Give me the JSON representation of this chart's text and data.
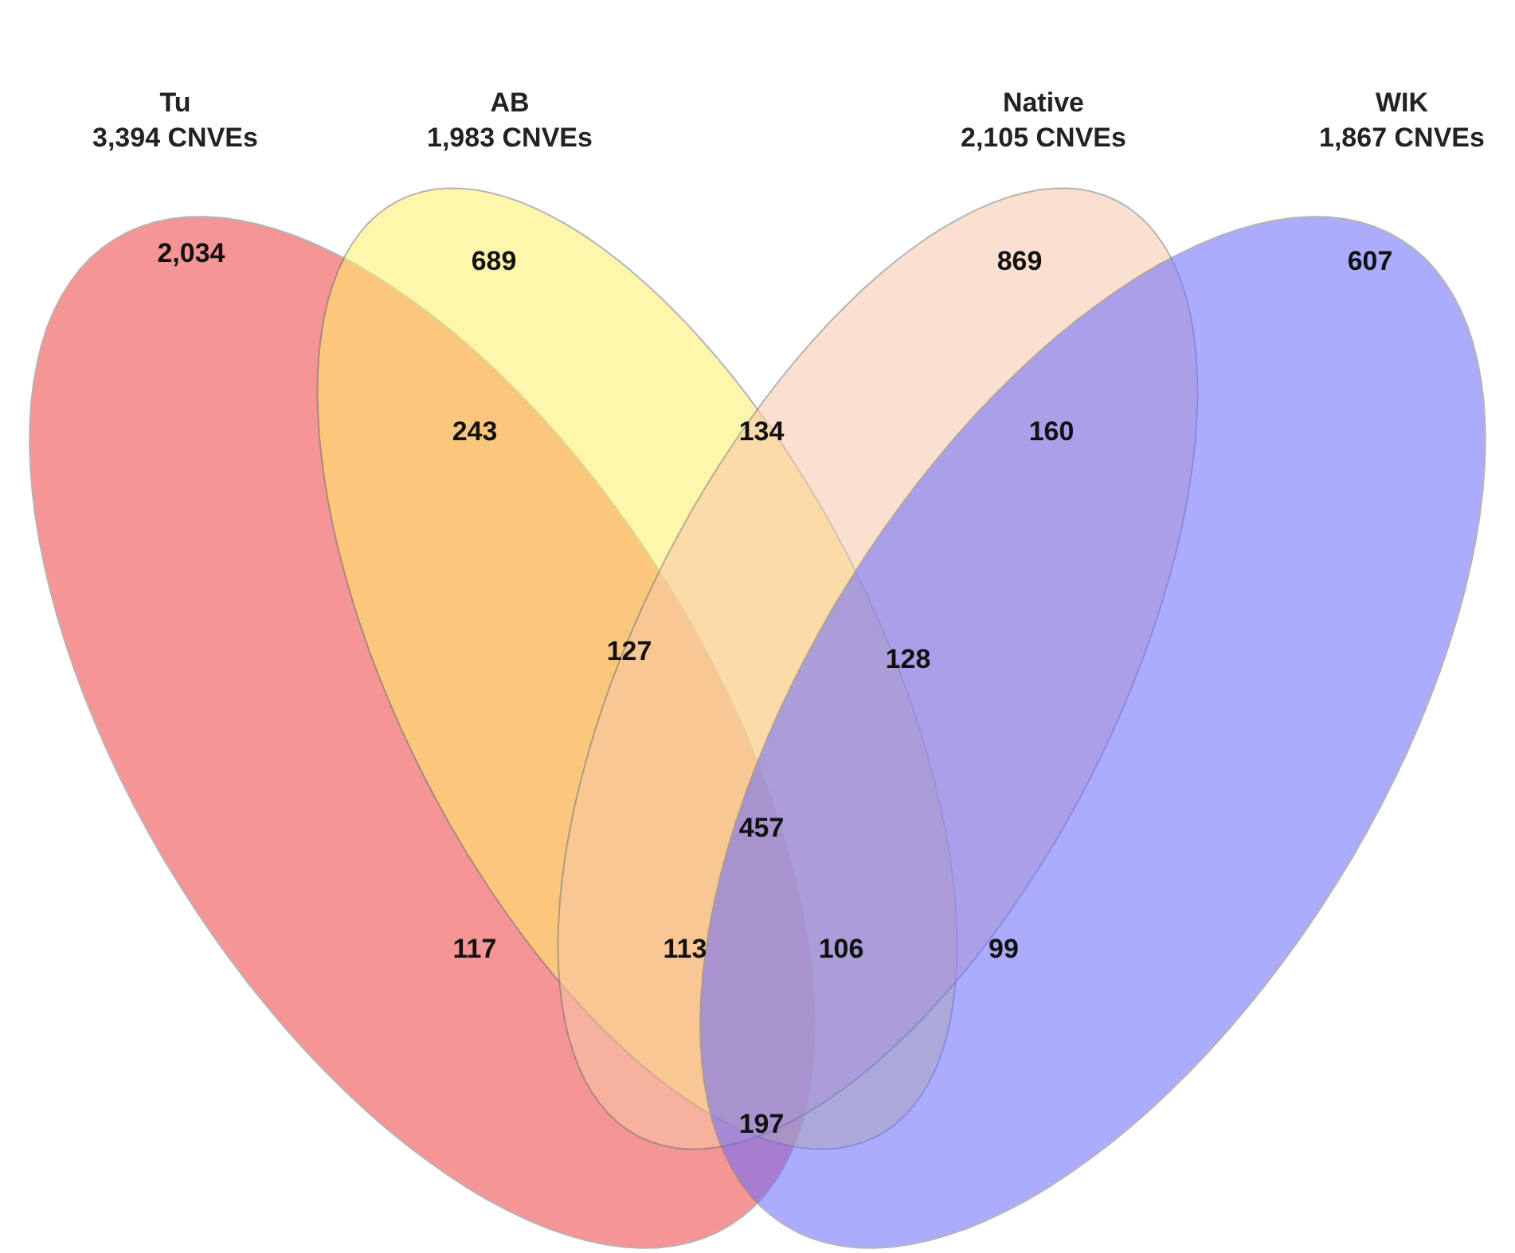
{
  "chart_data": {
    "type": "other",
    "categories": [
      null,
      null,
      null,
      null,
      null,
      null,
      null,
      null,
      null,
      null,
      null,
      null,
      null,
      null,
      null
    ],
    "values": [
      2034,
      689,
      869,
      607,
      243,
      134,
      160,
      127,
      128,
      457,
      117,
      113,
      106,
      99,
      197
    ],
    "value_labels": [
      "2,034",
      "689",
      "869",
      "607",
      "243",
      "134",
      "160",
      "127",
      "128",
      "457",
      "117",
      "113",
      "106",
      "99",
      "197"
    ],
    "annotations": [
      "Tu\n3,394 CNVEs",
      "AB\n1,983 CNVEs",
      "Native\n2,105 CNVEs",
      "WIK\n1,867 CNVEs"
    ]
  }
}
